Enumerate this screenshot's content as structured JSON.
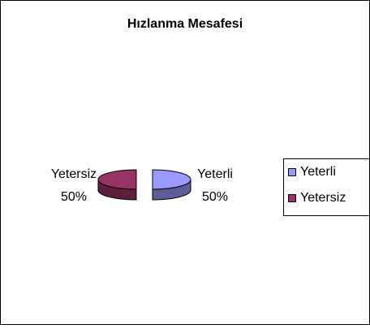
{
  "chart_data": {
    "type": "pie",
    "title": "Hızlanma Mesafesi",
    "categories": [
      "Yeterli",
      "Yetersiz"
    ],
    "values": [
      50,
      50
    ],
    "value_labels": [
      "50%",
      "50%"
    ],
    "colors": [
      "#9999ff",
      "#993366"
    ],
    "legend": "right"
  }
}
